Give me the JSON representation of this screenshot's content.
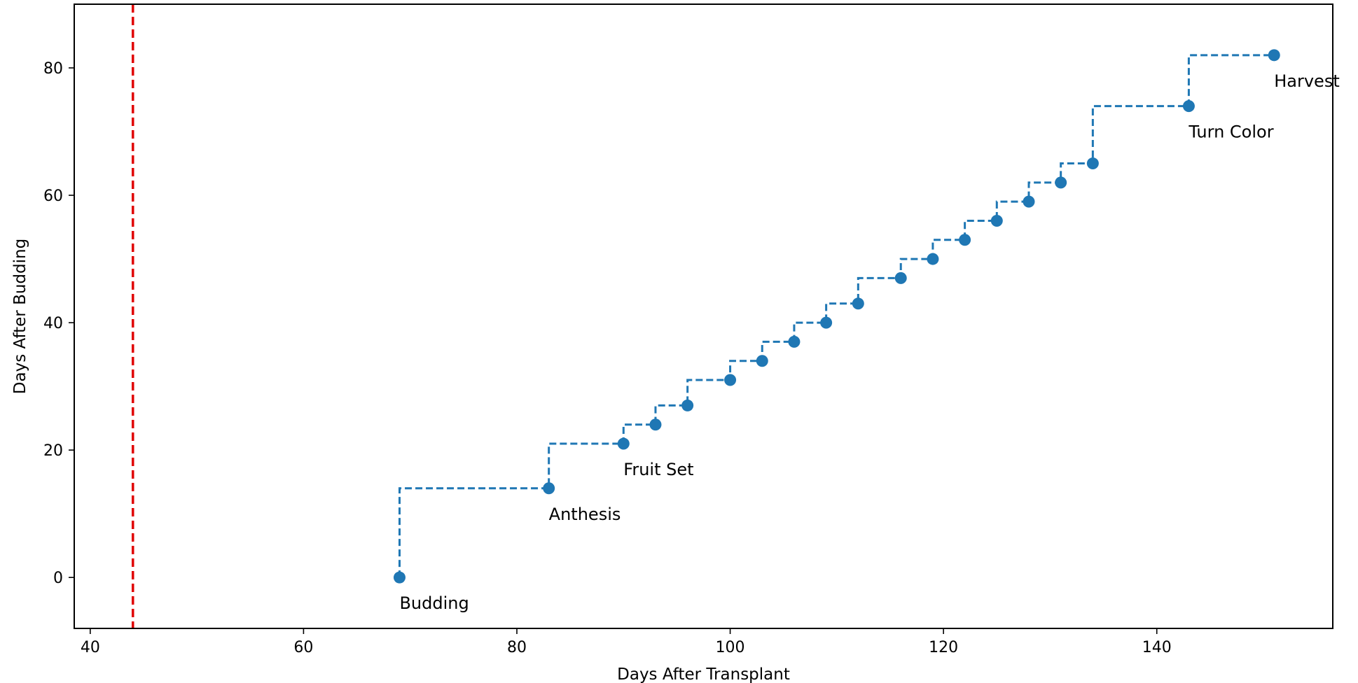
{
  "chart_data": {
    "type": "line",
    "xlabel": "Days After Transplant",
    "ylabel": "Days After Budding",
    "xlim": [
      38.5,
      156.5
    ],
    "ylim": [
      -8,
      90
    ],
    "xticks": [
      40,
      60,
      80,
      100,
      120,
      140
    ],
    "yticks": [
      0,
      20,
      40,
      60,
      80
    ],
    "grid": false,
    "colors": {
      "series": "#1f77b4",
      "reference_line": "#e00000"
    },
    "reference_line": {
      "x": 44,
      "style": "dashed"
    },
    "series": [
      {
        "style": "step-post dashed with circle markers",
        "points": [
          {
            "x": 69,
            "y": 0
          },
          {
            "x": 83,
            "y": 14
          },
          {
            "x": 90,
            "y": 21
          },
          {
            "x": 93,
            "y": 24
          },
          {
            "x": 96,
            "y": 27
          },
          {
            "x": 100,
            "y": 31
          },
          {
            "x": 103,
            "y": 34
          },
          {
            "x": 106,
            "y": 37
          },
          {
            "x": 109,
            "y": 40
          },
          {
            "x": 112,
            "y": 43
          },
          {
            "x": 116,
            "y": 47
          },
          {
            "x": 119,
            "y": 50
          },
          {
            "x": 122,
            "y": 53
          },
          {
            "x": 125,
            "y": 56
          },
          {
            "x": 128,
            "y": 59
          },
          {
            "x": 131,
            "y": 62
          },
          {
            "x": 134,
            "y": 65
          },
          {
            "x": 143,
            "y": 74
          },
          {
            "x": 151,
            "y": 82
          }
        ]
      }
    ],
    "annotations": [
      {
        "text": "Budding",
        "x": 69,
        "y": 0
      },
      {
        "text": "Anthesis",
        "x": 83,
        "y": 14
      },
      {
        "text": "Fruit Set",
        "x": 90,
        "y": 21
      },
      {
        "text": "Turn Color",
        "x": 143,
        "y": 74
      },
      {
        "text": "Harvest",
        "x": 151,
        "y": 82
      }
    ]
  }
}
